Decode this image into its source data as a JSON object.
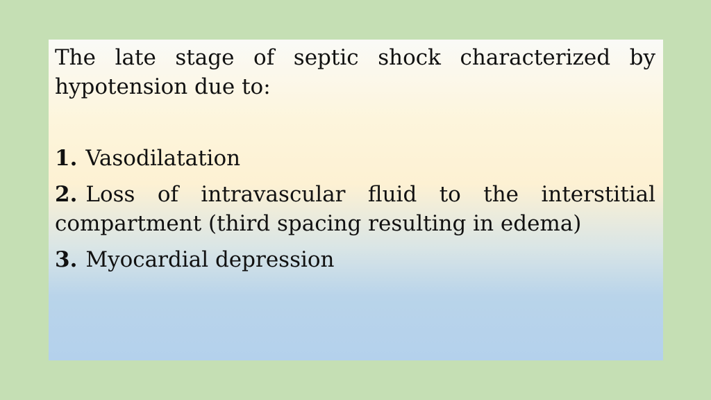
{
  "slide": {
    "intro": "The late stage of septic shock characterized by hypotension due to:",
    "items": [
      {
        "number": "1.",
        "text": "Vasodilatation"
      },
      {
        "number": "2.",
        "text": "Loss of intravascular fluid to the interstitial compartment (third spacing resulting in edema)"
      },
      {
        "number": "3.",
        "text": "Myocardial depression"
      }
    ]
  }
}
